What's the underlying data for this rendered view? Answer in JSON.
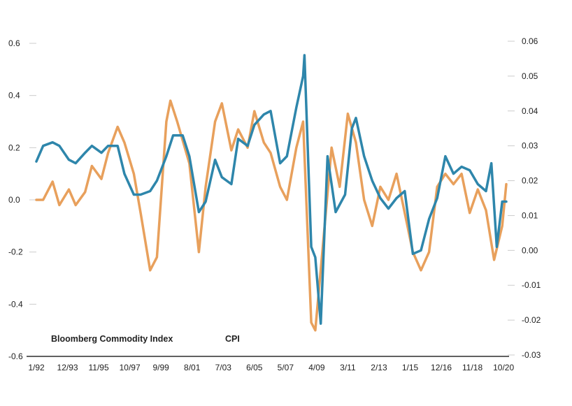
{
  "chart_data": {
    "type": "line",
    "title": "",
    "xlabel": "",
    "ylabel_left": "",
    "ylabel_right": "",
    "x_tick_labels": [
      "1/92",
      "12/93",
      "11/95",
      "10/97",
      "9/99",
      "8/01",
      "7/03",
      "6/05",
      "5/07",
      "4/09",
      "3/11",
      "2/13",
      "1/15",
      "12/16",
      "11/18",
      "10/20"
    ],
    "x_range": [
      "1/92",
      "12/20"
    ],
    "y_left_ticks": [
      "0.6",
      "0.4",
      "0.2",
      "0.0",
      "-0.2",
      "-0.4",
      "-0.6"
    ],
    "y_left_lim": [
      -0.6,
      0.6
    ],
    "y_right_ticks": [
      "0.06",
      "0.05",
      "0.04",
      "0.03",
      "0.02",
      "0.01",
      "0.00",
      "-0.01",
      "-0.02",
      "-0.03"
    ],
    "y_right_lim": [
      -0.03,
      0.06
    ],
    "grid": false,
    "legend_position": "bottom-left",
    "series": [
      {
        "name": "Bloomberg Commodity Index",
        "axis": "left",
        "color": "#E8A05C",
        "points": [
          [
            "1/92",
            0.0
          ],
          [
            "6/92",
            0.0
          ],
          [
            "1/93",
            0.07
          ],
          [
            "6/93",
            -0.02
          ],
          [
            "1/94",
            0.04
          ],
          [
            "6/94",
            -0.02
          ],
          [
            "1/95",
            0.03
          ],
          [
            "6/95",
            0.13
          ],
          [
            "1/96",
            0.08
          ],
          [
            "6/96",
            0.18
          ],
          [
            "1/97",
            0.28
          ],
          [
            "6/97",
            0.22
          ],
          [
            "1/98",
            0.1
          ],
          [
            "6/98",
            -0.05
          ],
          [
            "1/99",
            -0.27
          ],
          [
            "6/99",
            -0.22
          ],
          [
            "1/00",
            0.3
          ],
          [
            "4/00",
            0.38
          ],
          [
            "9/00",
            0.3
          ],
          [
            "6/01",
            0.14
          ],
          [
            "1/02",
            -0.2
          ],
          [
            "6/02",
            0.05
          ],
          [
            "1/03",
            0.3
          ],
          [
            "6/03",
            0.37
          ],
          [
            "1/04",
            0.19
          ],
          [
            "6/04",
            0.27
          ],
          [
            "1/05",
            0.2
          ],
          [
            "6/05",
            0.34
          ],
          [
            "1/06",
            0.22
          ],
          [
            "6/06",
            0.18
          ],
          [
            "1/07",
            0.05
          ],
          [
            "6/07",
            0.0
          ],
          [
            "1/08",
            0.2
          ],
          [
            "6/08",
            0.3
          ],
          [
            "12/08",
            -0.47
          ],
          [
            "3/09",
            -0.5
          ],
          [
            "9/09",
            -0.15
          ],
          [
            "3/10",
            0.2
          ],
          [
            "9/10",
            0.05
          ],
          [
            "3/11",
            0.33
          ],
          [
            "9/11",
            0.22
          ],
          [
            "3/12",
            0.0
          ],
          [
            "9/12",
            -0.1
          ],
          [
            "3/13",
            0.05
          ],
          [
            "9/13",
            0.0
          ],
          [
            "3/14",
            0.1
          ],
          [
            "9/14",
            -0.05
          ],
          [
            "3/15",
            -0.2
          ],
          [
            "9/15",
            -0.27
          ],
          [
            "3/16",
            -0.2
          ],
          [
            "9/16",
            0.05
          ],
          [
            "3/17",
            0.1
          ],
          [
            "9/17",
            0.06
          ],
          [
            "3/18",
            0.1
          ],
          [
            "9/18",
            -0.05
          ],
          [
            "3/19",
            0.04
          ],
          [
            "9/19",
            -0.04
          ],
          [
            "3/20",
            -0.23
          ],
          [
            "9/20",
            -0.1
          ],
          [
            "12/20",
            0.06
          ]
        ]
      },
      {
        "name": "CPI",
        "axis": "right",
        "color": "#2E86AB",
        "points": [
          [
            "1/92",
            0.0255
          ],
          [
            "6/92",
            0.03
          ],
          [
            "1/93",
            0.031
          ],
          [
            "6/93",
            0.03
          ],
          [
            "1/94",
            0.026
          ],
          [
            "6/94",
            0.025
          ],
          [
            "1/95",
            0.028
          ],
          [
            "6/95",
            0.03
          ],
          [
            "1/96",
            0.028
          ],
          [
            "6/96",
            0.03
          ],
          [
            "1/97",
            0.03
          ],
          [
            "6/97",
            0.022
          ],
          [
            "1/98",
            0.016
          ],
          [
            "6/98",
            0.016
          ],
          [
            "1/99",
            0.017
          ],
          [
            "6/99",
            0.02
          ],
          [
            "1/00",
            0.027
          ],
          [
            "6/00",
            0.033
          ],
          [
            "1/01",
            0.033
          ],
          [
            "6/01",
            0.027
          ],
          [
            "1/02",
            0.011
          ],
          [
            "6/02",
            0.014
          ],
          [
            "1/03",
            0.026
          ],
          [
            "6/03",
            0.021
          ],
          [
            "1/04",
            0.019
          ],
          [
            "6/04",
            0.032
          ],
          [
            "1/05",
            0.03
          ],
          [
            "6/05",
            0.036
          ],
          [
            "1/06",
            0.039
          ],
          [
            "6/06",
            0.04
          ],
          [
            "1/07",
            0.025
          ],
          [
            "6/07",
            0.027
          ],
          [
            "1/08",
            0.041
          ],
          [
            "6/08",
            0.05
          ],
          [
            "7/08",
            0.056
          ],
          [
            "12/08",
            0.001
          ],
          [
            "3/09",
            -0.002
          ],
          [
            "7/09",
            -0.021
          ],
          [
            "12/09",
            0.027
          ],
          [
            "6/10",
            0.011
          ],
          [
            "1/11",
            0.016
          ],
          [
            "6/11",
            0.035
          ],
          [
            "9/11",
            0.038
          ],
          [
            "3/12",
            0.027
          ],
          [
            "9/12",
            0.02
          ],
          [
            "3/13",
            0.015
          ],
          [
            "9/13",
            0.012
          ],
          [
            "3/14",
            0.015
          ],
          [
            "9/14",
            0.017
          ],
          [
            "3/15",
            -0.001
          ],
          [
            "9/15",
            0.0
          ],
          [
            "3/16",
            0.009
          ],
          [
            "9/16",
            0.015
          ],
          [
            "3/17",
            0.027
          ],
          [
            "9/17",
            0.022
          ],
          [
            "3/18",
            0.024
          ],
          [
            "9/18",
            0.023
          ],
          [
            "3/19",
            0.019
          ],
          [
            "9/19",
            0.017
          ],
          [
            "1/20",
            0.025
          ],
          [
            "5/20",
            0.001
          ],
          [
            "9/20",
            0.014
          ],
          [
            "12/20",
            0.014
          ]
        ]
      }
    ]
  }
}
